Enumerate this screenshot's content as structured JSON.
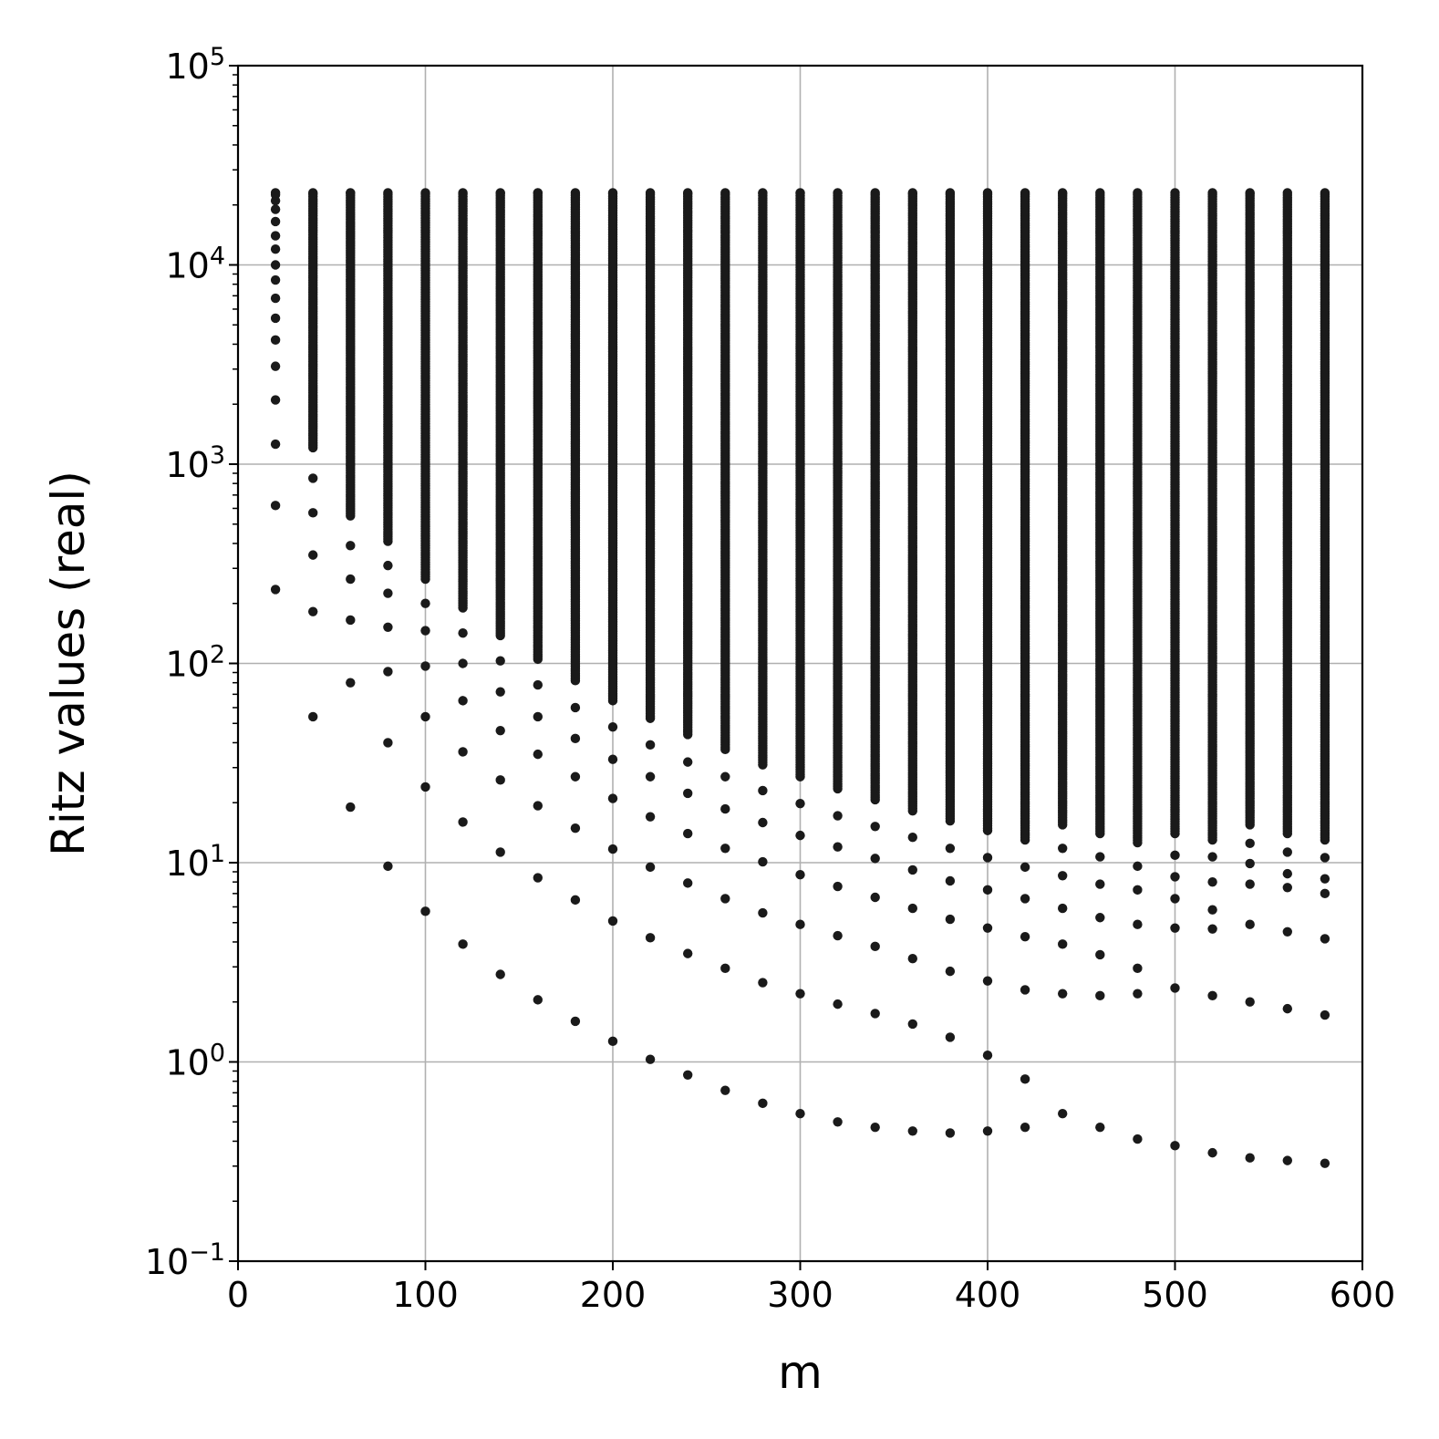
{
  "chart_data": {
    "type": "scatter",
    "xlabel": "m",
    "ylabel": "Ritz values (real)",
    "xlim": [
      0,
      600
    ],
    "ylim": [
      0.1,
      100000
    ],
    "yscale": "log",
    "grid": true,
    "x_ticks": [
      {
        "value": 0,
        "label": "0"
      },
      {
        "value": 100,
        "label": "100"
      },
      {
        "value": 200,
        "label": "200"
      },
      {
        "value": 300,
        "label": "300"
      },
      {
        "value": 400,
        "label": "400"
      },
      {
        "value": 500,
        "label": "500"
      },
      {
        "value": 600,
        "label": "600"
      }
    ],
    "y_ticks": [
      {
        "value": 0.1,
        "base": "10",
        "exp": "−1"
      },
      {
        "value": 1,
        "base": "10",
        "exp": "0"
      },
      {
        "value": 10,
        "base": "10",
        "exp": "1"
      },
      {
        "value": 100,
        "base": "10",
        "exp": "2"
      },
      {
        "value": 1000,
        "base": "10",
        "exp": "3"
      },
      {
        "value": 10000,
        "base": "10",
        "exp": "4"
      },
      {
        "value": 100000,
        "base": "10",
        "exp": "5"
      }
    ],
    "marker_color": "#1a1a1a",
    "ritz_upper_limit": 23000,
    "columns": [
      {
        "m": 20,
        "points": [
          235,
          620,
          1260,
          2100,
          3100,
          4200,
          5400,
          6800,
          8400,
          10000,
          12000,
          14000,
          16500,
          19000,
          21000,
          22500
        ]
      },
      {
        "m": 40,
        "points": [
          54,
          182,
          350,
          570,
          850,
          1210
        ]
      },
      {
        "m": 60,
        "points": [
          19,
          80,
          165,
          265,
          390,
          550
        ]
      },
      {
        "m": 80,
        "points": [
          9.6,
          40,
          91,
          152,
          225,
          310,
          410
        ]
      },
      {
        "m": 100,
        "points": [
          5.7,
          24,
          54,
          97,
          146,
          200,
          265
        ]
      },
      {
        "m": 120,
        "points": [
          3.9,
          16,
          36,
          65,
          100,
          142,
          190
        ]
      },
      {
        "m": 140,
        "points": [
          2.75,
          11.3,
          26,
          46,
          72,
          103,
          138
        ]
      },
      {
        "m": 160,
        "points": [
          2.05,
          8.4,
          19.3,
          35,
          54,
          78,
          105
        ]
      },
      {
        "m": 180,
        "points": [
          1.6,
          6.5,
          14.9,
          27,
          42,
          60,
          82
        ]
      },
      {
        "m": 200,
        "points": [
          1.27,
          5.1,
          11.7,
          21,
          33,
          48,
          65
        ]
      },
      {
        "m": 220,
        "points": [
          1.03,
          4.2,
          9.5,
          17,
          27,
          39,
          53
        ]
      },
      {
        "m": 240,
        "points": [
          0.86,
          3.5,
          7.9,
          14,
          22.3,
          32,
          44
        ]
      },
      {
        "m": 260,
        "points": [
          0.72,
          2.95,
          6.6,
          11.8,
          18.6,
          27,
          37
        ]
      },
      {
        "m": 280,
        "points": [
          0.62,
          2.5,
          5.6,
          10.1,
          15.9,
          23,
          31
        ]
      },
      {
        "m": 300,
        "points": [
          0.55,
          2.2,
          4.9,
          8.7,
          13.7,
          19.8,
          27
        ]
      },
      {
        "m": 320,
        "points": [
          0.5,
          1.95,
          4.3,
          7.6,
          12,
          17.2,
          23.5
        ]
      },
      {
        "m": 340,
        "points": [
          0.47,
          1.75,
          3.8,
          6.7,
          10.5,
          15.2,
          20.7
        ]
      },
      {
        "m": 360,
        "points": [
          0.45,
          1.55,
          3.3,
          5.9,
          9.2,
          13.4,
          18.2
        ]
      },
      {
        "m": 380,
        "points": [
          0.44,
          1.33,
          2.85,
          5.2,
          8.1,
          11.8,
          16.2
        ]
      },
      {
        "m": 400,
        "points": [
          0.45,
          1.08,
          2.55,
          4.7,
          7.3,
          10.6,
          14.5
        ]
      },
      {
        "m": 420,
        "points": [
          0.47,
          0.82,
          2.3,
          4.25,
          6.6,
          9.5,
          13
        ]
      },
      {
        "m": 440,
        "points": [
          0.55,
          2.2,
          3.9,
          5.9,
          8.6,
          11.8,
          15.5
        ]
      },
      {
        "m": 460,
        "points": [
          0.47,
          2.15,
          3.45,
          5.3,
          7.8,
          10.7,
          14
        ]
      },
      {
        "m": 480,
        "points": [
          0.41,
          2.2,
          2.95,
          4.9,
          7.3,
          9.6,
          12.6
        ]
      },
      {
        "m": 500,
        "points": [
          0.38,
          2.35,
          4.7,
          6.6,
          8.5,
          10.9,
          14
        ]
      },
      {
        "m": 520,
        "points": [
          0.35,
          2.15,
          4.65,
          5.8,
          8,
          10.7,
          13
        ]
      },
      {
        "m": 540,
        "points": [
          0.33,
          2,
          4.9,
          7.8,
          9.9,
          12.5,
          15.5
        ]
      },
      {
        "m": 560,
        "points": [
          0.32,
          1.85,
          4.5,
          7.5,
          8.8,
          11.3,
          14
        ]
      },
      {
        "m": 580,
        "points": [
          0.31,
          1.72,
          4.15,
          7,
          8.3,
          10.6,
          13
        ]
      }
    ]
  }
}
